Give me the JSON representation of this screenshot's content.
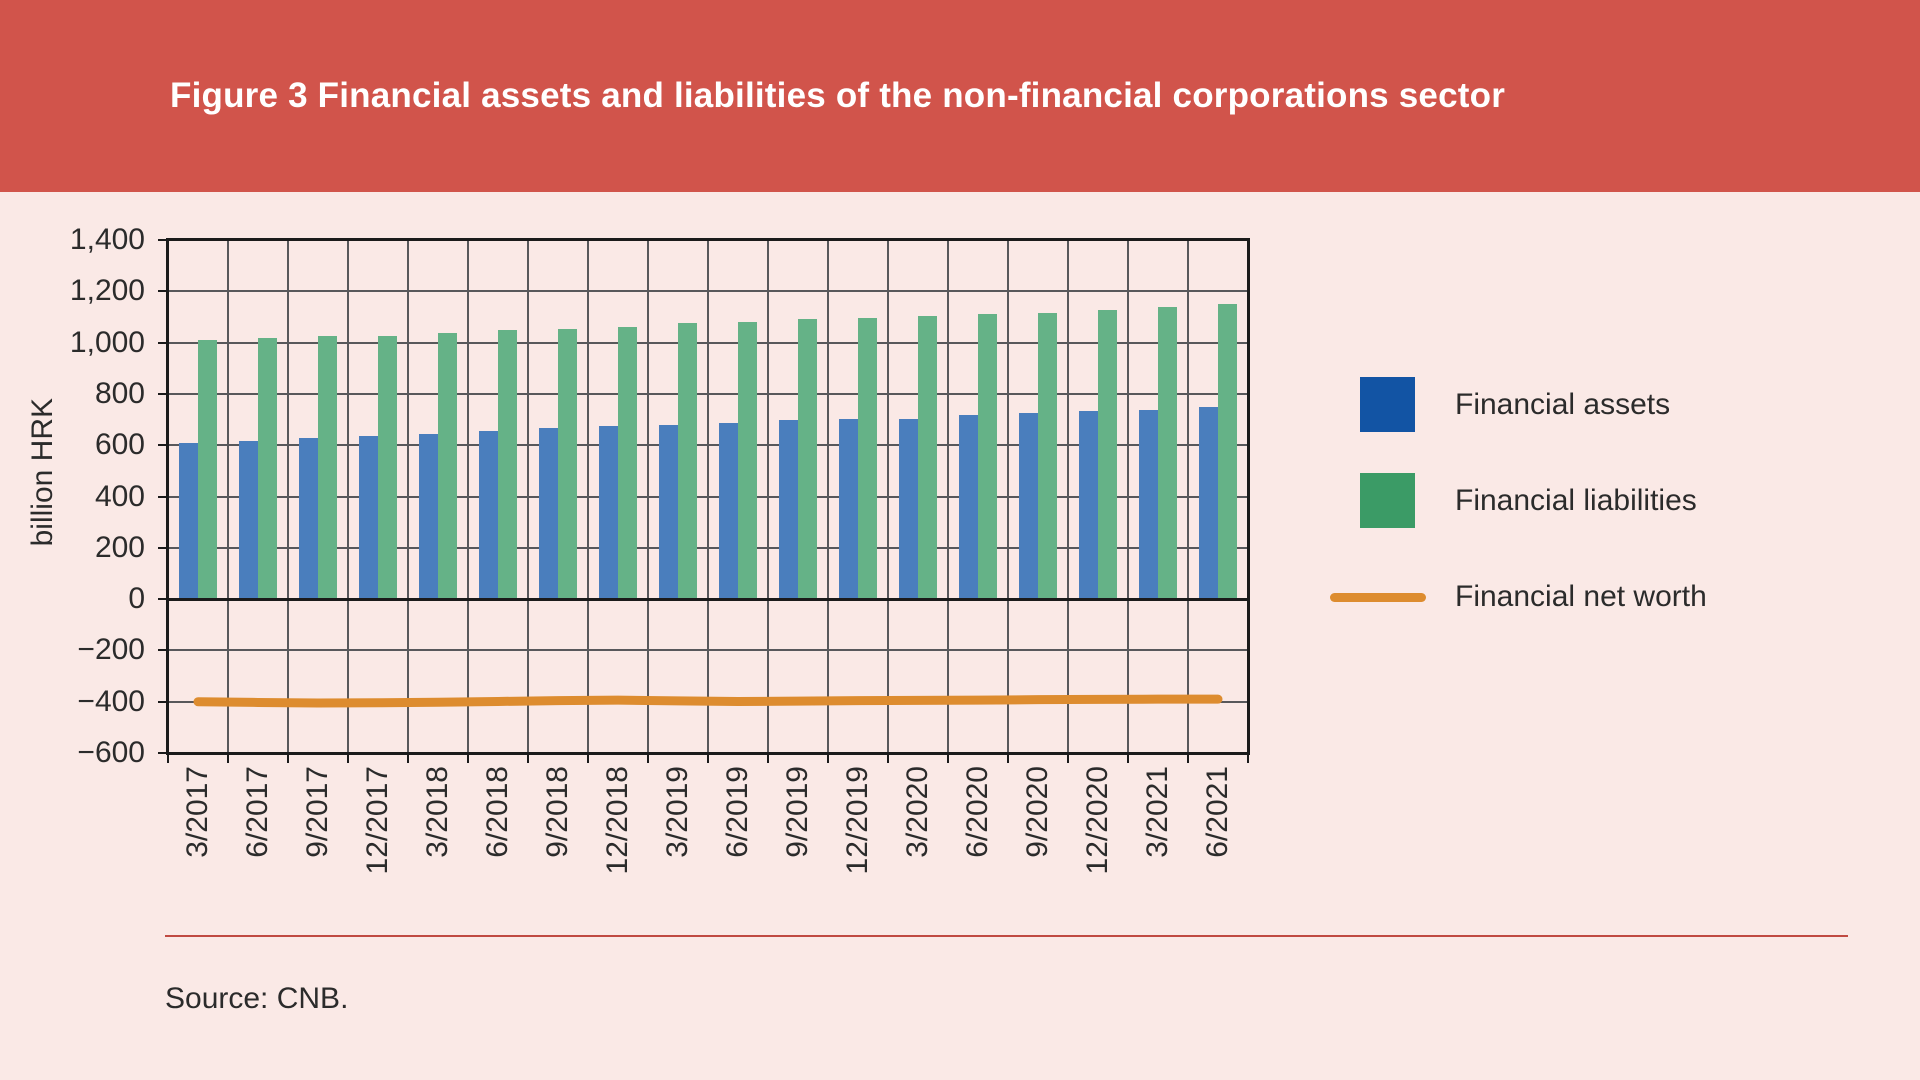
{
  "header": {
    "title": "Figure 3 Financial assets and liabilities of the non-financial corporations sector"
  },
  "source": {
    "label": "Source: CNB."
  },
  "colors": {
    "header_bg": "#D1544B",
    "page_bg": "#FAE9E6",
    "source_rule": "#C04A42",
    "assets_bar": "#4A7EBD",
    "liabilities_bar": "#65B287",
    "net_worth_line": "#DD8C2F",
    "legend_assets_swatch": "#1254A4",
    "legend_liabilities_swatch": "#3B9B66",
    "grid": "#58585B",
    "axis": "#1B1B1B",
    "text": "#2B2B2B"
  },
  "chart_data": {
    "type": "bar",
    "title": "Figure 3 Financial assets and liabilities of the non-financial corporations sector",
    "xlabel": "",
    "ylabel": "billion HRK",
    "ylim": [
      -600,
      1400
    ],
    "ytick_step": 200,
    "yticks": [
      1400,
      1200,
      1000,
      800,
      600,
      400,
      200,
      0,
      -200,
      -400,
      -600
    ],
    "ytick_labels": [
      "1,400",
      "1,200",
      "1,000",
      "800",
      "600",
      "400",
      "200",
      "0",
      "−200",
      "−400",
      "−600"
    ],
    "grid": true,
    "legend_position": "right",
    "categories": [
      "3/2017",
      "6/2017",
      "9/2017",
      "12/2017",
      "3/2018",
      "6/2018",
      "9/2018",
      "12/2018",
      "3/2019",
      "6/2019",
      "9/2019",
      "12/2019",
      "3/2020",
      "6/2020",
      "9/2020",
      "12/2020",
      "3/2021",
      "6/2021"
    ],
    "series": [
      {
        "name": "Financial assets",
        "type": "bar",
        "color": "#4A7EBD",
        "values": [
          610,
          616,
          629,
          635,
          643,
          656,
          666,
          674,
          677,
          685,
          698,
          703,
          703,
          717,
          726,
          734,
          739,
          749
        ]
      },
      {
        "name": "Financial liabilities",
        "type": "bar",
        "color": "#65B287",
        "values": [
          1012,
          1019,
          1026,
          1027,
          1039,
          1048,
          1052,
          1060,
          1077,
          1082,
          1091,
          1096,
          1103,
          1113,
          1117,
          1126,
          1138,
          1152
        ]
      },
      {
        "name": "Financial net worth",
        "type": "line",
        "color": "#DD8C2F",
        "values": [
          -400,
          -403,
          -405,
          -404,
          -402,
          -399,
          -396,
          -394,
          -397,
          -399,
          -398,
          -396,
          -395,
          -394,
          -392,
          -391,
          -390,
          -390
        ]
      }
    ],
    "legend": [
      {
        "label": "Financial assets",
        "swatch": "square",
        "color": "#1254A4"
      },
      {
        "label": "Financial liabilities",
        "swatch": "square",
        "color": "#3B9B66"
      },
      {
        "label": "Financial net worth",
        "swatch": "line",
        "color": "#DD8C2F"
      }
    ]
  }
}
